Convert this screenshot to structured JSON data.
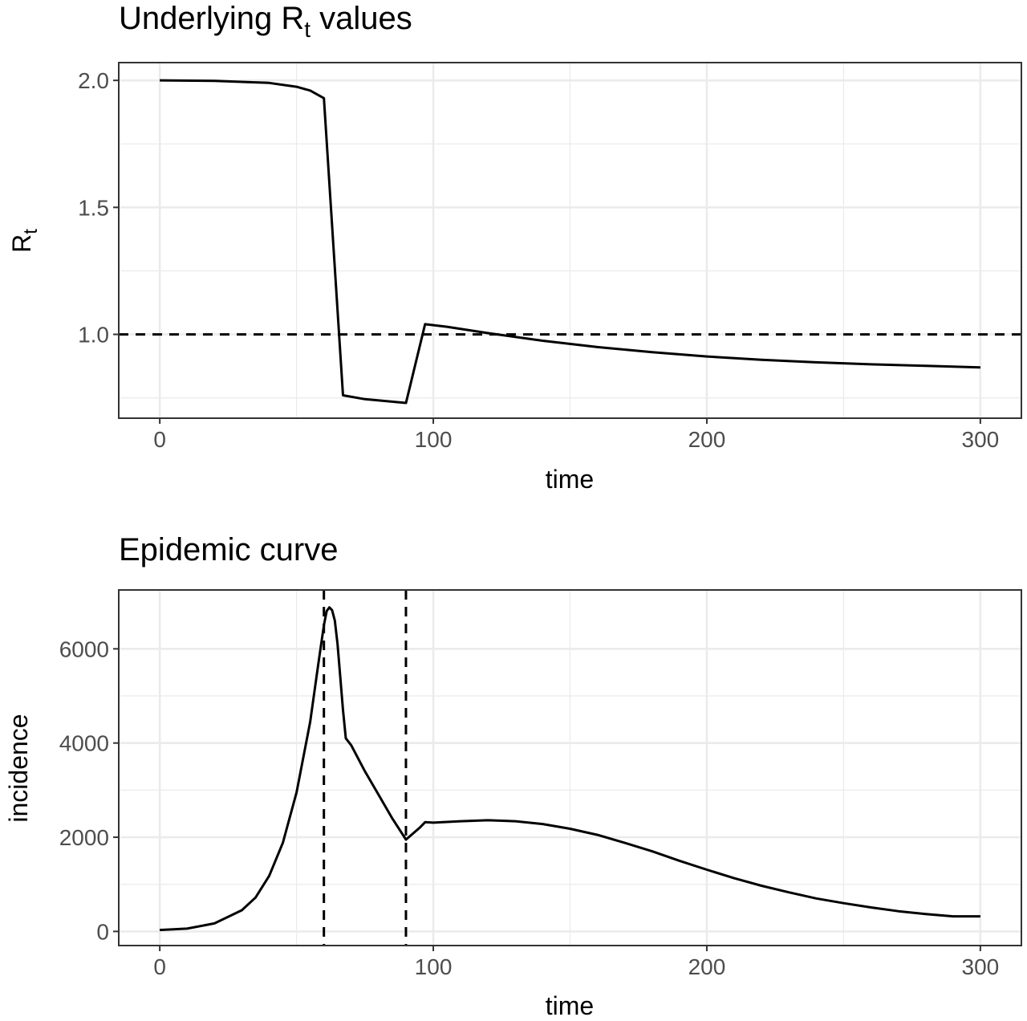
{
  "chart_data": [
    {
      "type": "line",
      "title": "Underlying R",
      "title_subscript": "t",
      "title_suffix": " values",
      "xlabel": "time",
      "ylabel": "R",
      "ylabel_subscript": "t",
      "xlim": [
        -15,
        315
      ],
      "ylim": [
        0.67,
        2.07
      ],
      "xticks": [
        0,
        100,
        200,
        300
      ],
      "xtick_labels": [
        "0",
        "100",
        "200",
        "300"
      ],
      "yticks": [
        1.0,
        1.5,
        2.0
      ],
      "ytick_labels": [
        "1.0",
        "1.5",
        "2.0"
      ],
      "grid": true,
      "hline": {
        "y": 1.0,
        "style": "dashed"
      },
      "x": [
        0,
        20,
        40,
        50,
        55,
        60,
        67,
        75,
        90,
        97,
        105,
        120,
        140,
        160,
        180,
        200,
        220,
        240,
        260,
        280,
        300
      ],
      "y": [
        2.0,
        1.998,
        1.99,
        1.975,
        1.96,
        1.93,
        0.76,
        0.745,
        0.73,
        1.04,
        1.03,
        1.005,
        0.975,
        0.95,
        0.93,
        0.913,
        0.9,
        0.89,
        0.882,
        0.876,
        0.87
      ]
    },
    {
      "type": "line",
      "title": "Epidemic curve",
      "xlabel": "time",
      "ylabel": "incidence",
      "xlim": [
        -15,
        315
      ],
      "ylim": [
        -300,
        7250
      ],
      "xticks": [
        0,
        100,
        200,
        300
      ],
      "xtick_labels": [
        "0",
        "100",
        "200",
        "300"
      ],
      "yticks": [
        0,
        2000,
        4000,
        6000
      ],
      "ytick_labels": [
        "0",
        "2000",
        "4000",
        "6000"
      ],
      "grid": true,
      "vlines": [
        60,
        90
      ],
      "x": [
        0,
        10,
        20,
        30,
        35,
        40,
        45,
        50,
        55,
        58,
        60,
        61,
        62,
        63,
        64,
        65,
        66,
        67,
        68,
        70,
        75,
        80,
        85,
        90,
        95,
        97,
        100,
        110,
        120,
        130,
        140,
        150,
        160,
        170,
        180,
        190,
        200,
        210,
        220,
        230,
        240,
        250,
        260,
        270,
        280,
        290,
        300
      ],
      "y": [
        30,
        60,
        170,
        450,
        720,
        1180,
        1880,
        2950,
        4450,
        5700,
        6500,
        6800,
        6880,
        6820,
        6600,
        6100,
        5400,
        4700,
        4100,
        3950,
        3400,
        2900,
        2400,
        1950,
        2200,
        2320,
        2310,
        2340,
        2360,
        2340,
        2280,
        2180,
        2050,
        1880,
        1700,
        1500,
        1310,
        1130,
        970,
        830,
        700,
        600,
        510,
        430,
        370,
        320,
        320
      ]
    }
  ]
}
